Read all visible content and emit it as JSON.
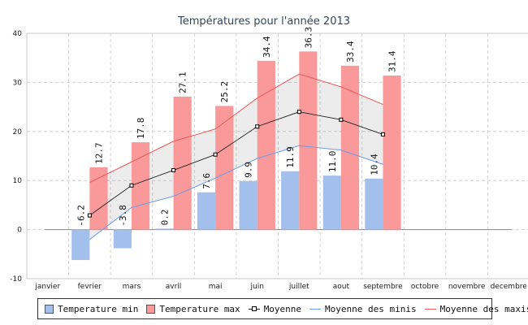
{
  "chart_data": {
    "type": "bar",
    "title": "Températures pour l'année 2013",
    "categories": [
      "janvier",
      "fevrier",
      "mars",
      "avril",
      "mai",
      "juin",
      "juillet",
      "aout",
      "septembre",
      "octobre",
      "novembre",
      "decembre"
    ],
    "ylim": [
      -10,
      40
    ],
    "yticks": [
      -10,
      0,
      10,
      20,
      30,
      40
    ],
    "grid": true,
    "series": [
      {
        "name": "Temperature min",
        "kind": "bar",
        "color": "#a3bfec",
        "values": [
          null,
          -6.2,
          -3.8,
          0.2,
          7.6,
          9.9,
          11.9,
          11.0,
          10.4,
          null,
          null,
          null
        ],
        "labels": [
          "",
          "-6.2",
          "-3.8",
          "0.2",
          "7.6",
          "9.9",
          "11.9",
          "11.0",
          "10.4",
          "",
          "",
          ""
        ]
      },
      {
        "name": "Temperature max",
        "kind": "bar",
        "color": "#f9999a",
        "values": [
          null,
          12.7,
          17.8,
          27.1,
          25.2,
          34.4,
          36.3,
          33.4,
          31.4,
          null,
          null,
          null
        ],
        "labels": [
          "",
          "12.7",
          "17.8",
          "27.1",
          "25.2",
          "34.4",
          "36.3",
          "33.4",
          "31.4",
          "",
          "",
          ""
        ]
      },
      {
        "name": "Moyenne",
        "kind": "line-marker",
        "color": "#222222",
        "values": [
          null,
          2.9,
          9.0,
          12.1,
          15.3,
          21.0,
          24.0,
          22.4,
          19.4,
          null,
          null,
          null
        ]
      },
      {
        "name": "Moyenne des minis",
        "kind": "line",
        "color": "#6d9ce6",
        "values": [
          null,
          -2.0,
          4.5,
          6.8,
          10.5,
          14.5,
          17.1,
          16.2,
          13.3,
          null,
          null,
          null
        ]
      },
      {
        "name": "Moyenne des maxis",
        "kind": "line",
        "color": "#e85a5a",
        "values": [
          null,
          9.6,
          13.8,
          18.0,
          20.5,
          26.8,
          31.7,
          29.1,
          25.5,
          null,
          null,
          null
        ]
      }
    ]
  }
}
